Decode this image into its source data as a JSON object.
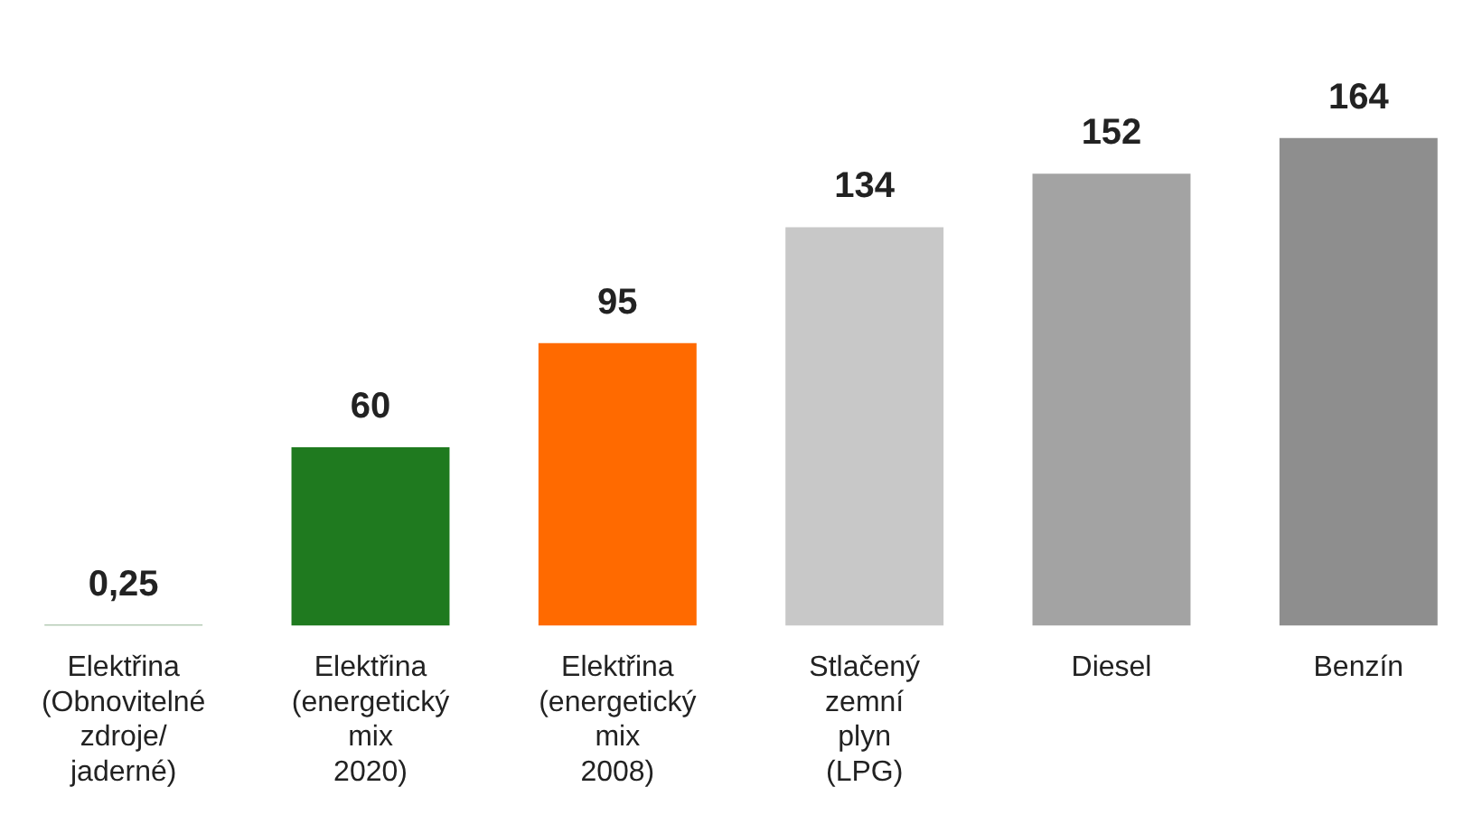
{
  "chart_data": {
    "type": "bar",
    "categories": [
      "Elektřina (Obnovitelné zdroje/ jaderné)",
      "Elektřina (energetický mix 2020)",
      "Elektřina (energetický mix 2008)",
      "Stlačený zemní plyn (LPG)",
      "Diesel",
      "Benzín"
    ],
    "values": [
      0.25,
      60,
      95,
      134,
      152,
      164
    ],
    "colors": [
      "#6f9a6f",
      "#1f7a1f",
      "#ff6a00",
      "#c8c8c8",
      "#a3a3a3",
      "#8e8e8e"
    ],
    "value_labels": [
      "0,25",
      "60",
      "95",
      "134",
      "152",
      "164"
    ],
    "grid": false,
    "legend": false
  }
}
